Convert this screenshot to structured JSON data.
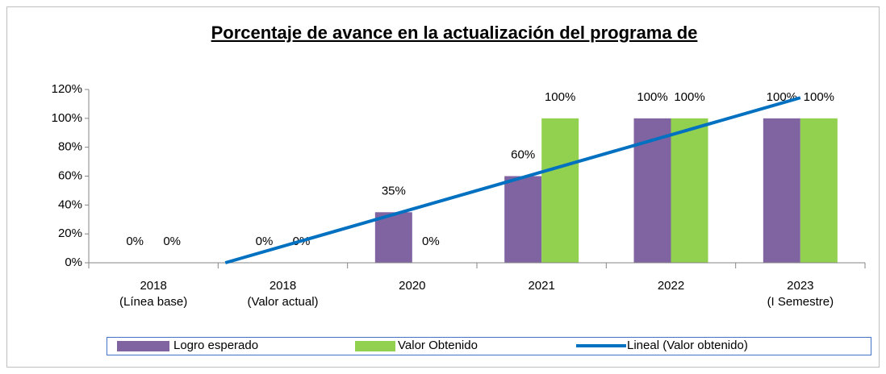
{
  "chart_data": {
    "type": "bar",
    "title": "Porcentaje de avance en la actualización del programa de",
    "categories": [
      [
        "2018",
        "(Línea base)"
      ],
      [
        "2018",
        "(Valor actual)"
      ],
      [
        "2020"
      ],
      [
        "2021"
      ],
      [
        "2022"
      ],
      [
        "2023",
        "(I Semestre)"
      ]
    ],
    "series": [
      {
        "name": "Logro esperado",
        "color": "#8064a2",
        "values": [
          0,
          0,
          35,
          60,
          100,
          100
        ],
        "value_labels": [
          "0%",
          "0%",
          "35%",
          "60%",
          "100%",
          "100%"
        ]
      },
      {
        "name": "Valor Obtenido",
        "color": "#92d050",
        "values": [
          0,
          0,
          0,
          100,
          100,
          100
        ],
        "value_labels": [
          "0%",
          "0%",
          "0%",
          "100%",
          "100%",
          "100%"
        ]
      }
    ],
    "trendline": {
      "name": "Lineal (Valor obtenido)",
      "color": "#0070c0",
      "kind": "linear",
      "series": 1
    },
    "ylim": [
      0,
      120
    ],
    "yticks": [
      {
        "value": 0,
        "label": "0%"
      },
      {
        "value": 20,
        "label": "20%"
      },
      {
        "value": 40,
        "label": "40%"
      },
      {
        "value": 60,
        "label": "60%"
      },
      {
        "value": 80,
        "label": "80%"
      },
      {
        "value": 100,
        "label": "100%"
      },
      {
        "value": 120,
        "label": "120%"
      }
    ],
    "legend": "bottom"
  }
}
